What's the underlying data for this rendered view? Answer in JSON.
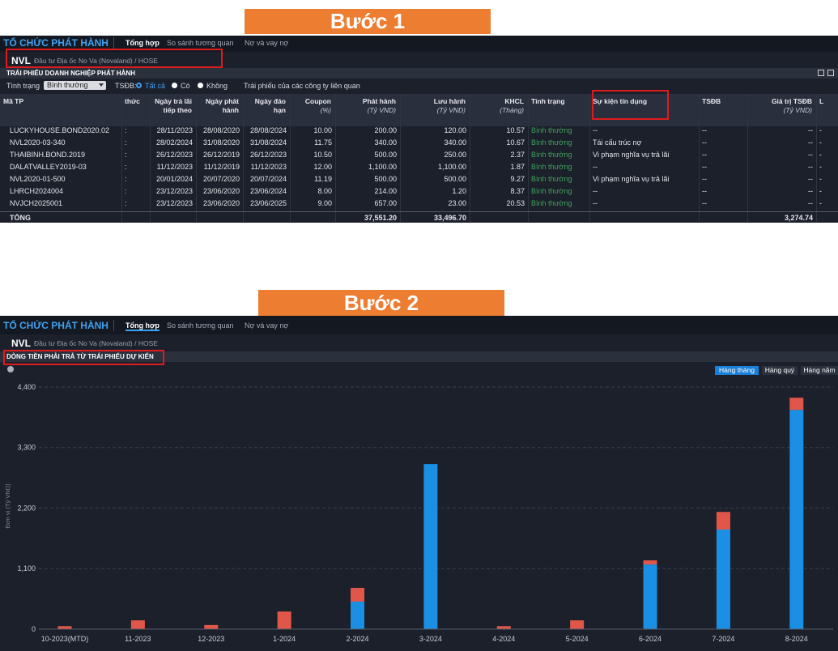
{
  "step1": {
    "banner": "Bước 1",
    "header": {
      "title": "TỔ CHỨC PHÁT HÀNH",
      "tabs": [
        "Tổng hợp",
        "So sánh tương quan",
        "Nợ và vay nợ"
      ],
      "ticker": "NVL",
      "company": "Đầu tư Địa ốc No Va (Novaland) / HOSE"
    },
    "section_title": "TRÁI PHIẾU DOANH NGHIỆP PHÁT HÀNH",
    "filters": {
      "status_label": "Tình trạng",
      "status_value": "Bình thường",
      "tsdb_label": "TSĐB:",
      "options": [
        "Tất cả",
        "Có",
        "Không"
      ],
      "related": "Trái phiếu của các công ty liên quan"
    },
    "table": {
      "columns": [
        {
          "label": "Mã TP"
        },
        {
          "label": "thức"
        },
        {
          "label": "Ngày trả lãi\ntiếp theo"
        },
        {
          "label": "Ngày phát\nhành"
        },
        {
          "label": "Ngày đáo\nhạn"
        },
        {
          "label": "Coupon",
          "unit": "(%)"
        },
        {
          "label": "Phát hành",
          "unit": "(Tỷ VND)"
        },
        {
          "label": "Lưu hành",
          "unit": "(Tỷ VND)"
        },
        {
          "label": "KHCL",
          "unit": "(Tháng)"
        },
        {
          "label": "Tình trạng"
        },
        {
          "label": "Sự kiện tín dụng"
        },
        {
          "label": "TSĐB"
        },
        {
          "label": "Giá trị TSĐB",
          "unit": "(Tỷ VND)"
        },
        {
          "label": "L"
        }
      ],
      "rows": [
        [
          "LUCKYHOUSE.BOND2020.02",
          ":",
          "28/11/2023",
          "28/08/2020",
          "28/08/2024",
          "10.00",
          "200.00",
          "120.00",
          "10.57",
          "Bình thường",
          "--",
          "--",
          "--",
          "-"
        ],
        [
          "NVL2020-03-340",
          ":",
          "28/02/2024",
          "31/08/2020",
          "31/08/2024",
          "11.75",
          "340.00",
          "340.00",
          "10.67",
          "Bình thường",
          "Tái cấu trúc nợ",
          "--",
          "--",
          "-"
        ],
        [
          "THAIBINH.BOND.2019",
          ":",
          "26/12/2023",
          "26/12/2019",
          "26/12/2023",
          "10.50",
          "500.00",
          "250.00",
          "2.37",
          "Bình thường",
          "Vi phạm nghĩa vụ trả lãi",
          "--",
          "--",
          "-"
        ],
        [
          "DALATVALLEY2019-03",
          ":",
          "11/12/2023",
          "11/12/2019",
          "11/12/2023",
          "12.00",
          "1,100.00",
          "1,100.00",
          "1.87",
          "Bình thường",
          "--",
          "--",
          "--",
          "-"
        ],
        [
          "NVL2020-01-500",
          ":",
          "20/01/2024",
          "20/07/2020",
          "20/07/2024",
          "11.19",
          "500.00",
          "500.00",
          "9.27",
          "Bình thường",
          "Vi phạm nghĩa vụ trả lãi",
          "--",
          "--",
          "-"
        ],
        [
          "LHRCH2024004",
          ":",
          "23/12/2023",
          "23/06/2020",
          "23/06/2024",
          "8.00",
          "214.00",
          "1.20",
          "8.37",
          "Bình thường",
          "--",
          "--",
          "--",
          "-"
        ],
        [
          "NVJCH2025001",
          ":",
          "23/12/2023",
          "23/06/2020",
          "23/06/2025",
          "9.00",
          "657.00",
          "23.00",
          "20.53",
          "Bình thường",
          "--",
          "--",
          "--",
          "-"
        ]
      ],
      "total": {
        "label": "TỔNG",
        "issued": "37,551.20",
        "outstanding": "33,496.70",
        "collateral_value": "3,274.74"
      }
    }
  },
  "step2": {
    "banner": "Bước 2",
    "header": {
      "title": "TỔ CHỨC PHÁT HÀNH",
      "tabs": [
        "Tổng hợp",
        "So sánh tương quan",
        "Nợ và vay nợ"
      ],
      "ticker": "NVL",
      "company": "Đầu tư Địa ốc No Va (Novaland) / HOSE"
    },
    "section_title": "DÒNG TIỀN PHẢI TRẢ TỪ TRÁI PHIẾU DỰ KIẾN",
    "period_buttons": [
      "Hàng tháng",
      "Hàng quý",
      "Hàng năm"
    ],
    "chart_data": {
      "type": "bar",
      "stacked": true,
      "ylabel": "Đơn vị (Tỷ VND)",
      "categories": [
        "10-2023(MTD)",
        "11-2023",
        "12-2023",
        "1-2024",
        "2-2024",
        "3-2024",
        "4-2024",
        "5-2024",
        "6-2024",
        "7-2024",
        "8-2024"
      ],
      "series": [
        {
          "color": "#1a8fe3",
          "values": [
            0,
            0,
            0,
            0,
            500,
            3000,
            0,
            0,
            1175,
            1810,
            3985
          ]
        },
        {
          "color": "#e0574a",
          "values": [
            55,
            160,
            75,
            320,
            250,
            0,
            55,
            160,
            75,
            320,
            220
          ]
        }
      ],
      "ylim": [
        0,
        4600
      ],
      "yticks": [
        0,
        {
          "value": 1100,
          "label": "1,100"
        },
        {
          "value": 2200,
          "label": "2,200"
        },
        {
          "value": 3300,
          "label": "3,300"
        },
        {
          "value": 4400,
          "label": "4,400"
        }
      ],
      "grid": true
    }
  }
}
